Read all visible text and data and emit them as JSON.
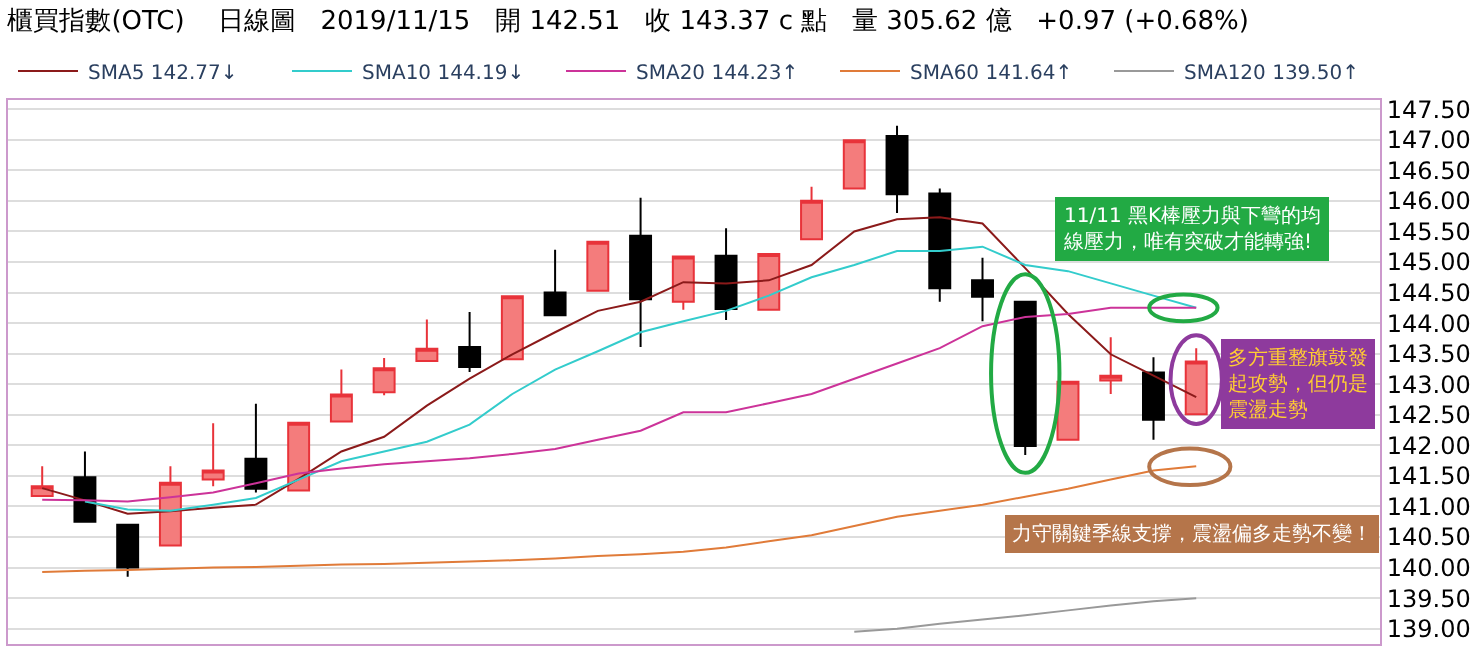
{
  "chart_data": {
    "type": "candlestick",
    "title": "櫃買指數(OTC)    日線圖   2019/11/15   開 142.51   收 143.37 c 點   量 305.62 億   +0.97 (+0.68%)",
    "categories": [
      null,
      null,
      null,
      null,
      null,
      null,
      null,
      null,
      null,
      null,
      null,
      null,
      null,
      null,
      null,
      null,
      null,
      null,
      null,
      null,
      null,
      null,
      null,
      null,
      null,
      null,
      null,
      null
    ],
    "ohlc": [
      [
        141.17,
        141.66,
        141.17,
        141.33
      ],
      [
        141.48,
        141.9,
        140.75,
        140.75
      ],
      [
        140.7,
        140.7,
        139.85,
        140.0
      ],
      [
        140.36,
        141.66,
        140.36,
        141.39
      ],
      [
        141.44,
        142.36,
        141.33,
        141.59
      ],
      [
        141.78,
        142.68,
        141.23,
        141.29
      ],
      [
        141.26,
        142.37,
        141.26,
        142.37
      ],
      [
        142.39,
        143.24,
        142.39,
        142.83
      ],
      [
        142.87,
        143.43,
        142.82,
        143.26
      ],
      [
        143.38,
        144.06,
        143.38,
        143.58
      ],
      [
        143.61,
        144.18,
        143.2,
        143.28
      ],
      [
        143.41,
        144.44,
        143.41,
        144.44
      ],
      [
        144.5,
        145.2,
        144.13,
        144.13
      ],
      [
        144.53,
        145.33,
        144.53,
        145.33
      ],
      [
        145.43,
        146.05,
        143.61,
        144.39
      ],
      [
        144.35,
        145.09,
        144.22,
        145.09
      ],
      [
        145.1,
        145.55,
        144.05,
        144.23
      ],
      [
        144.22,
        145.13,
        144.22,
        145.13
      ],
      [
        145.37,
        146.23,
        145.37,
        146.0
      ],
      [
        146.2,
        147.0,
        146.2,
        146.99
      ],
      [
        147.06,
        147.23,
        145.8,
        146.11
      ],
      [
        146.12,
        146.2,
        144.35,
        144.57
      ],
      [
        144.7,
        145.07,
        144.03,
        144.43
      ],
      [
        144.35,
        144.35,
        141.84,
        141.99
      ],
      [
        142.09,
        143.04,
        142.09,
        143.04
      ],
      [
        143.06,
        143.77,
        142.84,
        143.14
      ],
      [
        143.19,
        143.44,
        142.09,
        142.42
      ],
      [
        142.51,
        143.59,
        142.51,
        143.37
      ]
    ],
    "series": [
      {
        "name": "SMA5 142.77↓",
        "type": "line",
        "color": "#8b1a1a",
        "values": [
          141.3,
          141.1,
          140.88,
          140.92,
          140.98,
          141.03,
          141.45,
          141.9,
          142.14,
          142.65,
          143.09,
          143.49,
          143.85,
          144.2,
          144.35,
          144.67,
          144.65,
          144.7,
          144.95,
          145.5,
          145.7,
          145.73,
          145.63,
          144.9,
          144.15,
          143.49,
          143.14,
          142.79
        ]
      },
      {
        "name": "SMA10 144.19↓",
        "type": "line",
        "color": "#33cccc",
        "values": [
          null,
          141.08,
          140.95,
          140.93,
          141.03,
          141.14,
          141.44,
          141.74,
          141.9,
          142.06,
          142.34,
          142.84,
          143.24,
          143.54,
          143.85,
          144.03,
          144.2,
          144.45,
          144.75,
          144.95,
          145.18,
          145.18,
          145.25,
          144.95,
          144.85,
          144.65,
          144.45,
          144.25
        ]
      },
      {
        "name": "SMA20 144.23↑",
        "type": "line",
        "color": "#cc3399",
        "values": [
          141.11,
          141.1,
          141.08,
          141.15,
          141.23,
          141.38,
          141.54,
          141.62,
          141.69,
          141.74,
          141.79,
          141.86,
          141.94,
          142.09,
          142.24,
          142.54,
          142.54,
          142.69,
          142.84,
          143.09,
          143.34,
          143.59,
          143.95,
          144.1,
          144.15,
          144.25,
          144.25,
          144.25
        ]
      },
      {
        "name": "SMA60 141.64↑",
        "type": "line",
        "color": "#e07b39",
        "values": [
          139.93,
          139.95,
          139.96,
          139.98,
          140.0,
          140.01,
          140.03,
          140.05,
          140.06,
          140.08,
          140.1,
          140.12,
          140.15,
          140.19,
          140.22,
          140.26,
          140.33,
          140.43,
          140.53,
          140.68,
          140.83,
          140.93,
          141.03,
          141.16,
          141.29,
          141.44,
          141.59,
          141.66
        ]
      },
      {
        "name": "SMA120 139.50↑",
        "type": "line",
        "color": "#999999",
        "values": [
          null,
          null,
          null,
          null,
          null,
          null,
          null,
          null,
          null,
          null,
          null,
          null,
          null,
          null,
          null,
          null,
          null,
          null,
          null,
          138.95,
          139.0,
          139.08,
          139.15,
          139.22,
          139.3,
          139.38,
          139.45,
          139.5
        ]
      }
    ],
    "ylim": [
      138.75,
      147.65
    ],
    "yticks": [
      {
        "value": 139,
        "label": "139.00"
      },
      {
        "value": 139.5,
        "label": "139.50"
      },
      {
        "value": 140,
        "label": "140.00"
      },
      {
        "value": 140.5,
        "label": "140.50"
      },
      {
        "value": 141,
        "label": "141.00"
      },
      {
        "value": 141.5,
        "label": "141.50"
      },
      {
        "value": 142,
        "label": "142.00"
      },
      {
        "value": 142.5,
        "label": "142.50"
      },
      {
        "value": 143,
        "label": "143.00"
      },
      {
        "value": 143.5,
        "label": "143.50"
      },
      {
        "value": 144,
        "label": "144.00"
      },
      {
        "value": 144.5,
        "label": "144.50"
      },
      {
        "value": 145,
        "label": "145.00"
      },
      {
        "value": 145.5,
        "label": "145.50"
      },
      {
        "value": 146,
        "label": "146.00"
      },
      {
        "value": 146.5,
        "label": "146.50"
      },
      {
        "value": 147,
        "label": "147.00"
      },
      {
        "value": 147.5,
        "label": "147.50"
      }
    ],
    "tick_labels": "y",
    "grid": "y",
    "legend": "top",
    "line_style": "solid",
    "marker": "none",
    "annotations": [
      "11/11 黑K棒壓力與下彎的均線壓力，唯有突破才能轉強!",
      "多方重整旗鼓發起攻勢，但仍是震盪走勢",
      "力守關鍵季線支撐，震盪偏多走勢不變！"
    ]
  }
}
